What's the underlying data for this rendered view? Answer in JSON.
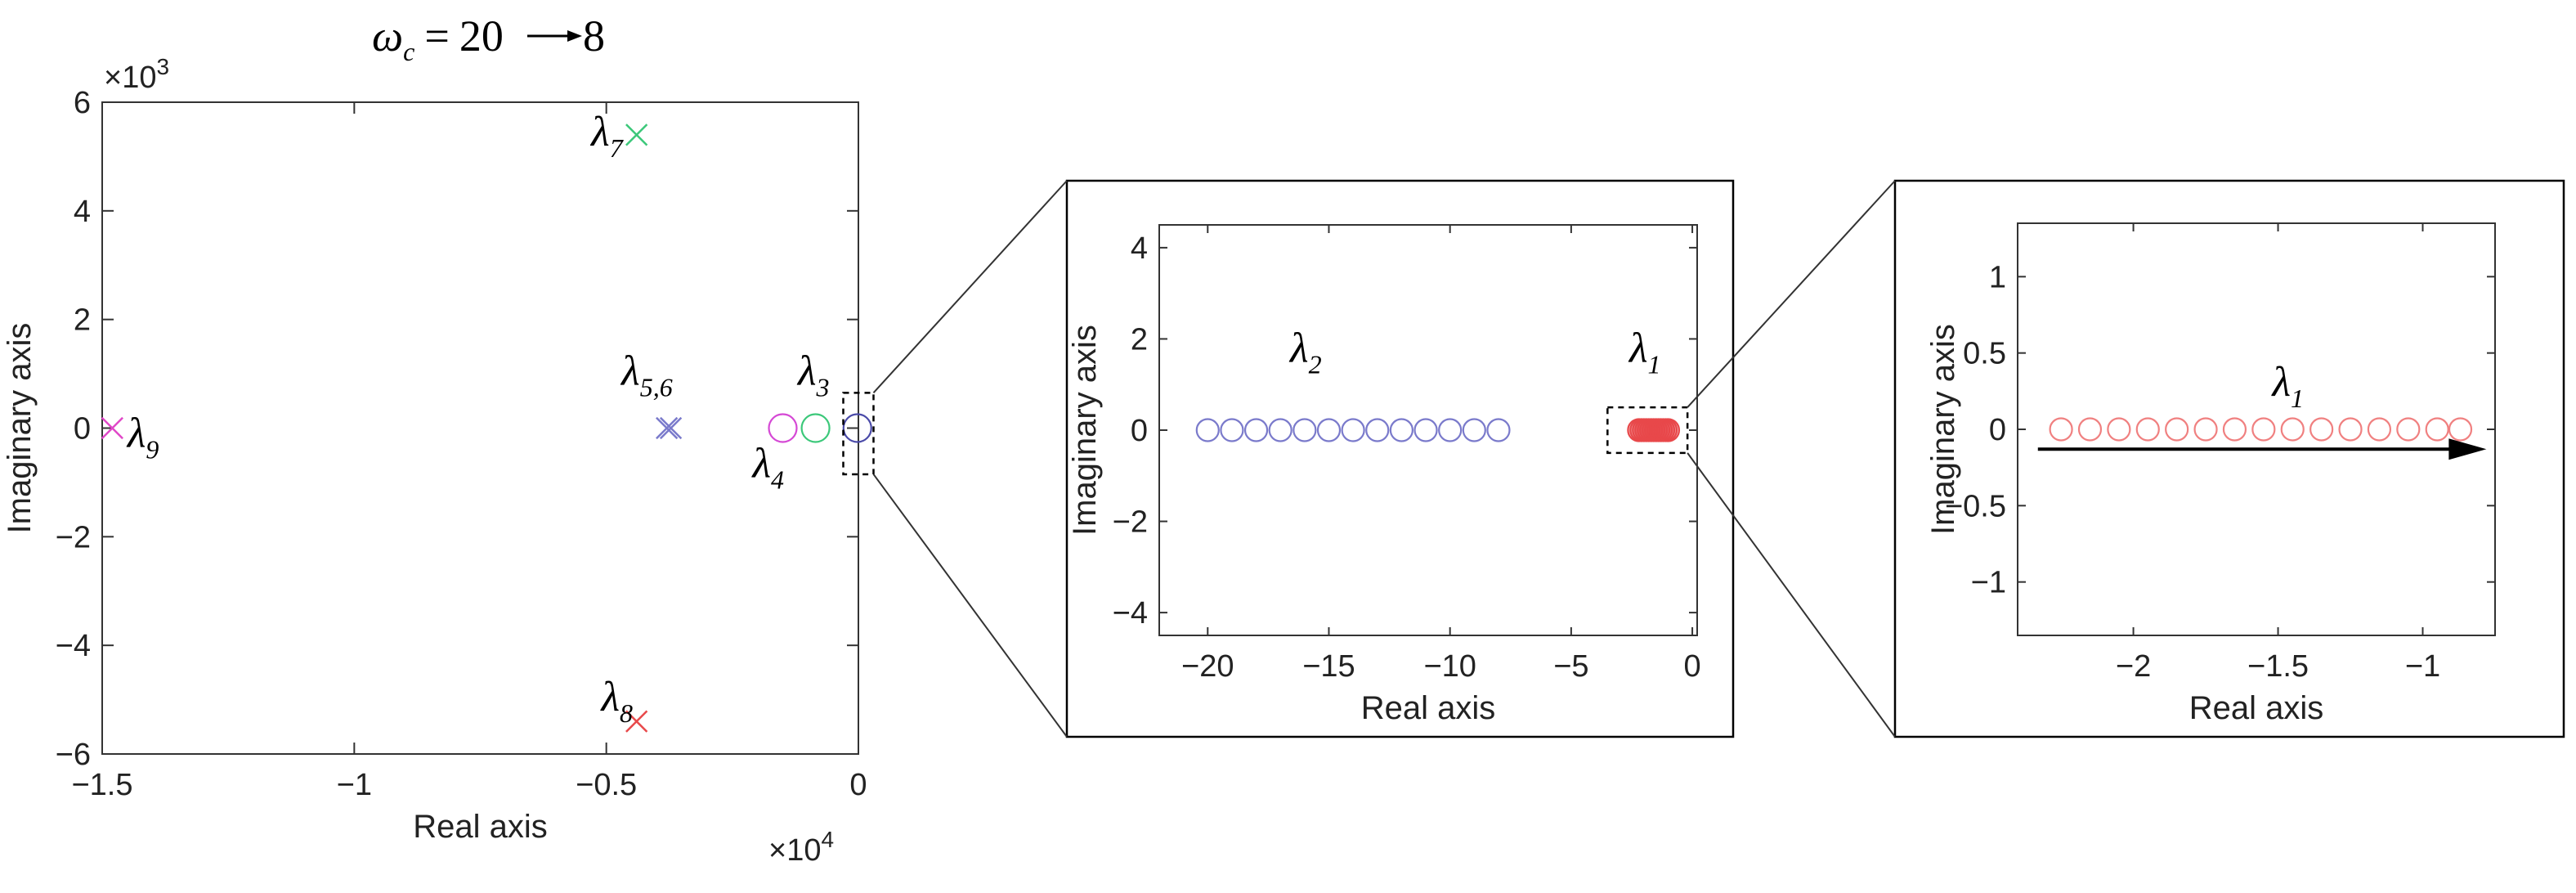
{
  "title": {
    "symbol": "ω",
    "subscript": "c",
    "equals": "=",
    "from": "20",
    "to": "8"
  },
  "chart_data": [
    {
      "type": "scatter",
      "title": "",
      "xlabel": "Real axis",
      "ylabel": "Imaginary axis",
      "xlim": [
        -1.5,
        0.0
      ],
      "ylim": [
        -6,
        6
      ],
      "x_multiplier": "×10^4",
      "y_multiplier": "×10^3",
      "x_ticks": [
        "-1.5",
        "-1",
        "-0.5",
        "0"
      ],
      "x_tick_values": [
        -1.5,
        -1,
        -0.5,
        0
      ],
      "y_ticks": [
        "-6",
        "-4",
        "-2",
        "0",
        "2",
        "4",
        "6"
      ],
      "y_tick_values": [
        -6,
        -4,
        -2,
        0,
        2,
        4,
        6
      ],
      "x_exponent_label": "×10",
      "x_exponent": "4",
      "y_exponent_label": "×10",
      "y_exponent": "3",
      "grid": false,
      "points": [
        {
          "name": "λ7",
          "x": -0.44,
          "y": 5.4,
          "marker": "x",
          "color": "#3cc87a"
        },
        {
          "name": "λ8",
          "x": -0.44,
          "y": -5.4,
          "marker": "x",
          "color": "#e8484a"
        },
        {
          "name": "λ9",
          "x": -1.48,
          "y": 0.0,
          "marker": "x",
          "color": "#e048c8"
        },
        {
          "name": "λ5,6",
          "x": -0.38,
          "y": 0.0,
          "marker": "x",
          "color": "#7a7acb"
        },
        {
          "name": "λ5,6",
          "x": -0.372,
          "y": 0.0,
          "marker": "x",
          "color": "#7a7acb"
        },
        {
          "name": "λ4",
          "x": -0.15,
          "y": 0.0,
          "marker": "o",
          "color": "#d548d5"
        },
        {
          "name": "λ3",
          "x": -0.085,
          "y": 0.0,
          "marker": "o",
          "color": "#3cc87a"
        },
        {
          "name": "λ1,2",
          "x": -0.002,
          "y": 0.0,
          "marker": "o",
          "color": "#4a4aa8"
        }
      ],
      "labels": [
        {
          "base": "λ",
          "sub": "7",
          "x": -0.53,
          "y": 5.2
        },
        {
          "base": "λ",
          "sub": "8",
          "x": -0.51,
          "y": -5.2
        },
        {
          "base": "λ",
          "sub": "9",
          "x": -1.45,
          "y": -0.35
        },
        {
          "base": "λ",
          "sub": "5,6",
          "x": -0.47,
          "y": 0.8
        },
        {
          "base": "λ",
          "sub": "3",
          "x": -0.12,
          "y": 0.8
        },
        {
          "base": "λ",
          "sub": "4",
          "x": -0.21,
          "y": -0.9
        }
      ],
      "zoom_box": {
        "x": [
          -0.03,
          0.03
        ],
        "y": [
          -0.85,
          0.65
        ]
      }
    },
    {
      "type": "scatter",
      "title": "",
      "xlabel": "Real axis",
      "ylabel": "Imaginary axis",
      "xlim": [
        -22,
        0.2
      ],
      "ylim": [
        -4.5,
        4.5
      ],
      "x_ticks": [
        "-20",
        "-15",
        "-10",
        "-5",
        "0"
      ],
      "x_tick_values": [
        -20,
        -15,
        -10,
        -5,
        0
      ],
      "y_ticks": [
        "-4",
        "-2",
        "0",
        "2",
        "4"
      ],
      "y_tick_values": [
        -4,
        -2,
        0,
        2,
        4
      ],
      "grid": false,
      "series": [
        {
          "name": "λ2",
          "color": "#7a7acb",
          "marker": "o",
          "x": [
            -20,
            -19,
            -18,
            -17,
            -16,
            -15,
            -14,
            -13,
            -12,
            -11,
            -10,
            -9,
            -8
          ],
          "y": [
            0,
            0,
            0,
            0,
            0,
            0,
            0,
            0,
            0,
            0,
            0,
            0,
            0
          ]
        },
        {
          "name": "λ1",
          "color": "#e8484a",
          "marker": "o",
          "filled": true,
          "x": [
            -2.2,
            -2.1,
            -2.0,
            -1.9,
            -1.8,
            -1.7,
            -1.6,
            -1.5,
            -1.4,
            -1.3,
            -1.2,
            -1.1,
            -1.0
          ],
          "y": [
            0,
            0,
            0,
            0,
            0,
            0,
            0,
            0,
            0,
            0,
            0,
            0,
            0
          ]
        }
      ],
      "labels": [
        {
          "base": "λ",
          "sub": "2",
          "x": -16.6,
          "y": 1.5
        },
        {
          "base": "λ",
          "sub": "1",
          "x": -2.6,
          "y": 1.5
        }
      ],
      "zoom_box": {
        "x": [
          -3.5,
          -0.2
        ],
        "y": [
          -0.5,
          0.5
        ]
      }
    },
    {
      "type": "scatter",
      "title": "",
      "xlabel": "Real axis",
      "ylabel": "Imaginary axis",
      "xlim": [
        -2.4,
        -0.75
      ],
      "ylim": [
        -1.35,
        1.35
      ],
      "x_ticks": [
        "-2",
        "-1.5",
        "-1"
      ],
      "x_tick_values": [
        -2,
        -1.5,
        -1
      ],
      "y_ticks": [
        "-1",
        "-0.5",
        "0",
        "0.5",
        "1"
      ],
      "y_tick_values": [
        -1,
        -0.5,
        0,
        0.5,
        1
      ],
      "grid": false,
      "series": [
        {
          "name": "λ1",
          "color": "#f08080",
          "marker": "o",
          "x": [
            -2.25,
            -2.15,
            -2.05,
            -1.95,
            -1.85,
            -1.75,
            -1.65,
            -1.55,
            -1.45,
            -1.35,
            -1.25,
            -1.15,
            -1.05,
            -0.95,
            -0.87
          ],
          "y": [
            0,
            0,
            0,
            0,
            0,
            0,
            0,
            0,
            0,
            0,
            0,
            0,
            0,
            0,
            0
          ]
        }
      ],
      "labels": [
        {
          "base": "λ",
          "sub": "1",
          "x": -1.52,
          "y": 0.22
        }
      ],
      "arrow": {
        "from": [
          -2.33,
          -0.13
        ],
        "to": [
          -0.78,
          -0.13
        ]
      }
    }
  ]
}
